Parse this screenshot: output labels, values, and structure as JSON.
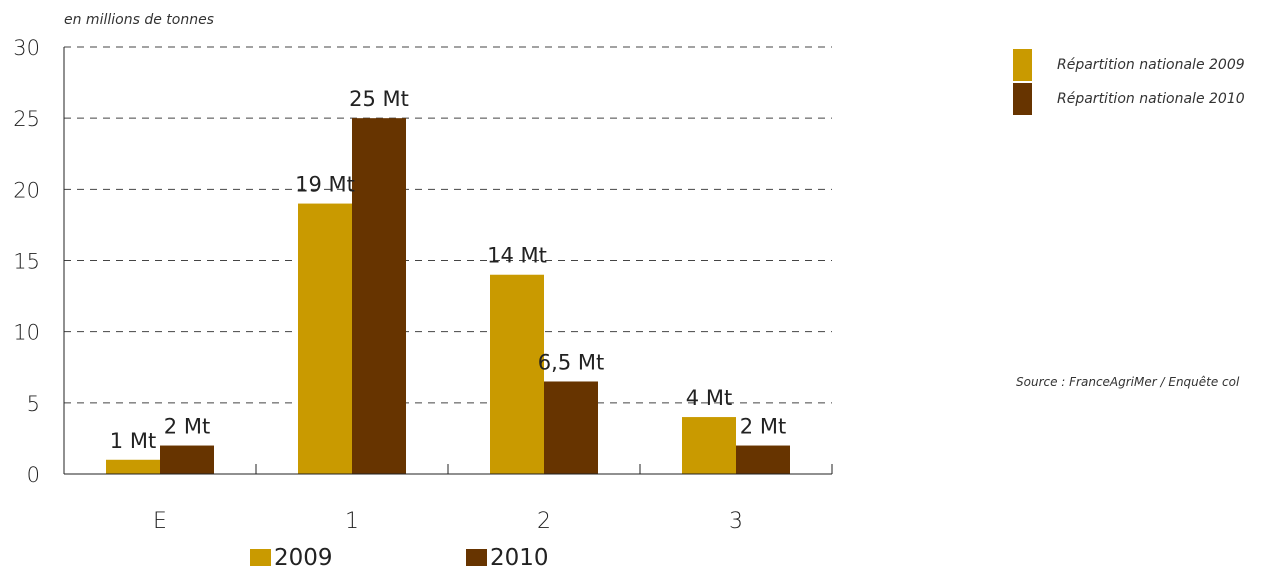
{
  "colors": {
    "s2009": "#c99a00",
    "s2010": "#673400"
  },
  "chart_data": {
    "type": "bar",
    "unit_label": "en millions de tonnes",
    "categories": [
      "E",
      "1",
      "2",
      "3"
    ],
    "ylim": [
      0,
      30
    ],
    "yticks": [
      "0",
      "5",
      "10",
      "15",
      "20",
      "25",
      "30"
    ],
    "grid": true,
    "legend_position": "bottom",
    "series": [
      {
        "name": "2009",
        "values": [
          1,
          19,
          14,
          4
        ],
        "labels": [
          "1 Mt",
          "19 Mt",
          "14 Mt",
          "4 Mt"
        ]
      },
      {
        "name": "2010",
        "values": [
          2,
          25,
          6.5,
          2
        ],
        "labels": [
          "2 Mt",
          "25 Mt",
          "6,5 Mt",
          "2 Mt"
        ]
      }
    ]
  },
  "side_legend": {
    "items": [
      {
        "label": "Répartition nationale 2009"
      },
      {
        "label": "Répartition nationale 2010"
      }
    ]
  },
  "source": "Source : FranceAgriMer / Enquête col"
}
